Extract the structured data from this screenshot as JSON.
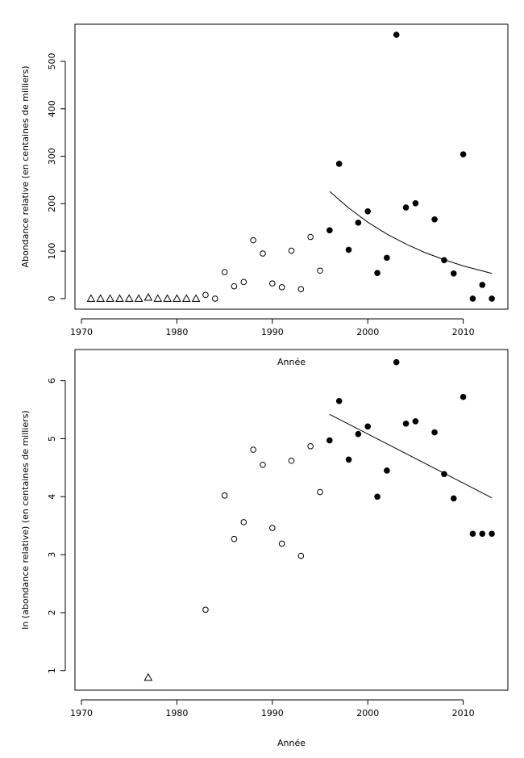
{
  "chart_data": [
    {
      "type": "scatter",
      "x_label": "Année",
      "y_label": "Abondance relative (en centaines de milliers)",
      "xlim": [
        1969.32,
        2014.68
      ],
      "xticks": [
        1970,
        1980,
        1990,
        2000,
        2010
      ],
      "ylim": [
        -22.24,
        578.24
      ],
      "yticks": [
        0,
        100,
        200,
        300,
        400,
        500
      ],
      "series": [
        {
          "marker": "triangle",
          "color": "#000000",
          "x": [
            1971,
            1972,
            1973,
            1974,
            1975,
            1976,
            1977,
            1978,
            1979,
            1980,
            1981,
            1982
          ],
          "values": [
            0,
            0,
            0,
            0,
            0,
            0,
            2.4,
            0,
            0,
            0,
            0,
            0
          ]
        },
        {
          "marker": "open-circle",
          "color": "#000000",
          "x": [
            1983,
            1984,
            1985,
            1986,
            1987,
            1988,
            1989,
            1990,
            1991,
            1992,
            1993,
            1994,
            1995
          ],
          "values": [
            7.8,
            0,
            56,
            26,
            35,
            123,
            95,
            32,
            24,
            101,
            20,
            130,
            59
          ]
        },
        {
          "marker": "filled-circle",
          "color": "#000000",
          "x": [
            1996,
            1997,
            1998,
            1999,
            2000,
            2001,
            2002,
            2003,
            2004,
            2005,
            2007,
            2008,
            2009,
            2010,
            2011,
            2012,
            2013
          ],
          "values": [
            144,
            284,
            103,
            160,
            184,
            54,
            86,
            556,
            192,
            201,
            167,
            81,
            53,
            304,
            0,
            29,
            0
          ]
        },
        {
          "marker": "line",
          "color": "#000000",
          "x": [
            1996,
            1998,
            2000,
            2002,
            2004,
            2006,
            2008,
            2010,
            2013
          ],
          "values": [
            226,
            191,
            161,
            136,
            115,
            97,
            82,
            69,
            53
          ]
        }
      ]
    },
    {
      "type": "scatter",
      "x_label": "Année",
      "y_label": "ln (abondance relative) (en centaines de milliers)",
      "xlim": [
        1969.32,
        2014.68
      ],
      "xticks": [
        1970,
        1980,
        1990,
        2000,
        2010
      ],
      "ylim": [
        0.6624,
        6.5376
      ],
      "yticks": [
        1,
        2,
        3,
        4,
        5,
        6
      ],
      "series": [
        {
          "marker": "triangle",
          "color": "#000000",
          "x": [
            1977
          ],
          "values": [
            0.88
          ]
        },
        {
          "marker": "open-circle",
          "color": "#000000",
          "x": [
            1983,
            1985,
            1986,
            1987,
            1988,
            1989,
            1990,
            1991,
            1992,
            1993,
            1994,
            1995
          ],
          "values": [
            2.05,
            4.02,
            3.27,
            3.56,
            4.81,
            4.55,
            3.46,
            3.19,
            4.62,
            2.98,
            4.87,
            4.08
          ]
        },
        {
          "marker": "filled-circle",
          "color": "#000000",
          "x": [
            1996,
            1997,
            1998,
            1999,
            2000,
            2001,
            2002,
            2003,
            2004,
            2005,
            2007,
            2008,
            2009,
            2010,
            2011,
            2012,
            2013
          ],
          "values": [
            4.97,
            5.65,
            4.64,
            5.08,
            5.21,
            4.0,
            4.45,
            6.32,
            5.26,
            5.3,
            5.11,
            4.39,
            3.97,
            5.72,
            3.36,
            3.36,
            3.36
          ]
        },
        {
          "marker": "line",
          "color": "#000000",
          "x": [
            1996,
            2013
          ],
          "values": [
            5.42,
            3.98
          ]
        }
      ]
    }
  ]
}
